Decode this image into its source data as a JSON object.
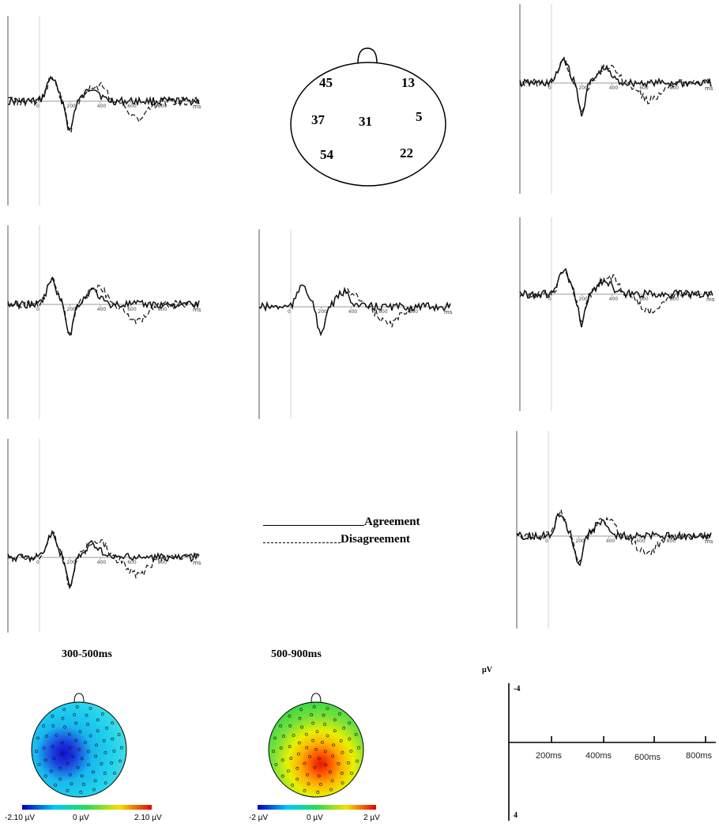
{
  "erp_panels": [
    {
      "id": "45",
      "ticks": [
        "0",
        "200",
        "400",
        "600",
        "800"
      ],
      "unit": "ms"
    },
    {
      "id": "13",
      "ticks": [
        "0",
        "200",
        "400",
        "600",
        "800"
      ],
      "unit": "ms"
    },
    {
      "id": "37",
      "ticks": [
        "0",
        "200",
        "400",
        "600",
        "800"
      ],
      "unit": "ms"
    },
    {
      "id": "31",
      "ticks": [
        "0",
        "200",
        "400",
        "600",
        "800"
      ],
      "unit": "ms"
    },
    {
      "id": "5",
      "ticks": [
        "0",
        "200",
        "400",
        "600",
        "800"
      ],
      "unit": "ms"
    },
    {
      "id": "54",
      "ticks": [
        "0",
        "200",
        "400",
        "600",
        "800"
      ],
      "unit": "ms"
    },
    {
      "id": "22",
      "ticks": [
        "0",
        "200",
        "400",
        "600",
        "800"
      ],
      "unit": "ms"
    }
  ],
  "head_map": {
    "electrodes": [
      "45",
      "13",
      "37",
      "31",
      "5",
      "54",
      "22"
    ]
  },
  "legend": {
    "agreement": "Agreement",
    "disagreement": "Disagreement"
  },
  "topomaps": [
    {
      "window": "300-500ms",
      "scale_min": "-2.10 µV",
      "scale_mid": "0 µV",
      "scale_max": "2.10 µV"
    },
    {
      "window": "500-900ms",
      "scale_min": "-2 µV",
      "scale_mid": "0 µV",
      "scale_max": "2 µV"
    }
  ],
  "scale_bar": {
    "unit": "µV",
    "top": "-4",
    "bottom": "4",
    "ticks": [
      "200ms",
      "400ms",
      "600ms",
      "800ms"
    ]
  },
  "colors": {
    "negative": "#0a1adf",
    "positive": "#ff2a00",
    "neutral": "#2fe06a"
  }
}
